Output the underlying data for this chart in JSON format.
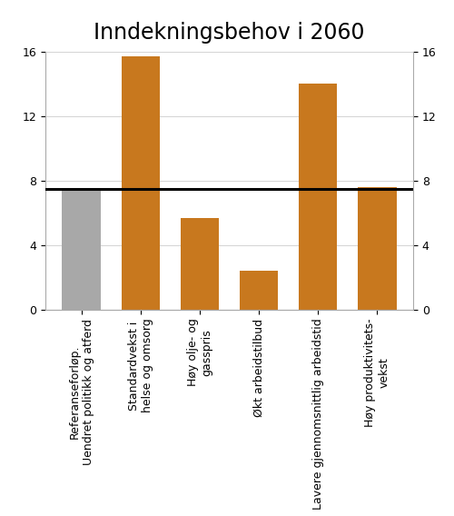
{
  "title": "Inndekningsbehov i 2060",
  "categories": [
    "Referanseforløp.\nUendret politikk og atferd",
    "Standardvekst i\nhelse og omsorg",
    "Høy olje- og\ngasspris",
    "Økt arbeidstilbud",
    "Lavere gjennomsnittlig arbeidstid",
    "Høy produktivitets-\nvekst"
  ],
  "values": [
    7.5,
    15.7,
    5.7,
    2.4,
    14.0,
    7.6
  ],
  "bar_colors": [
    "#a8a8a8",
    "#c8781e",
    "#c8781e",
    "#c8781e",
    "#c8781e",
    "#c8781e"
  ],
  "hline_y": 7.5,
  "ylim": [
    0,
    16
  ],
  "yticks": [
    0,
    4,
    8,
    12,
    16
  ],
  "title_fontsize": 17,
  "tick_fontsize": 9,
  "background_color": "#ffffff"
}
